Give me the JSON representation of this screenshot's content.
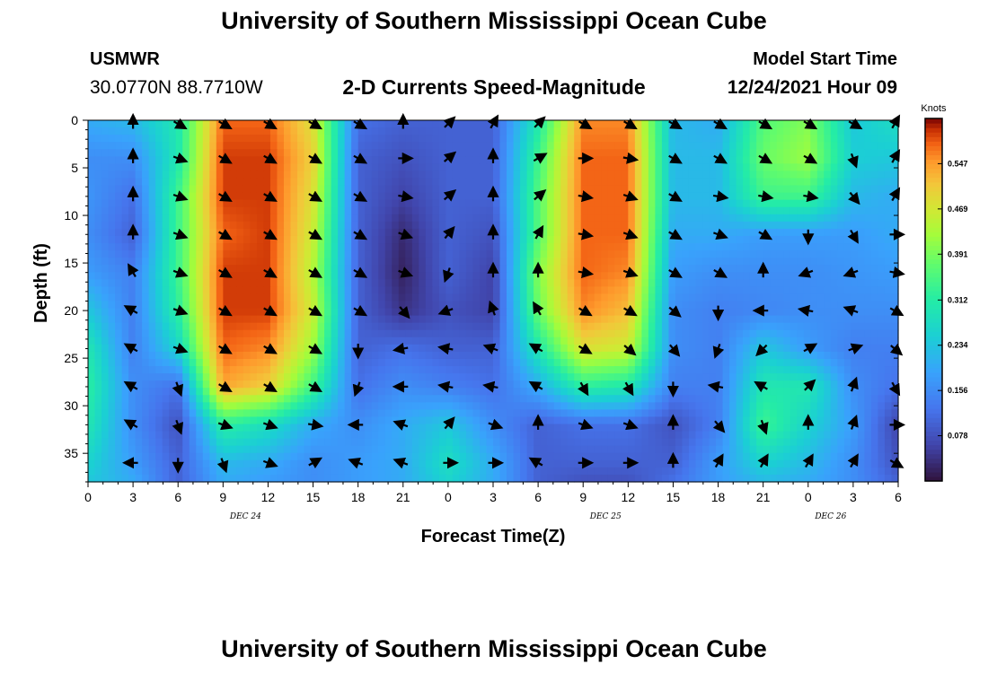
{
  "header": {
    "title": "University of Southern Mississippi Ocean Cube",
    "station_id": "USMWR",
    "station_coords": "30.0770N  88.7710W",
    "plot_title": "2-D Currents Speed-Magnitude",
    "model_label": "Model Start Time",
    "model_time": "12/24/2021 Hour 09"
  },
  "footer": {
    "title": "University of Southern Mississippi Ocean Cube"
  },
  "chart_data": {
    "type": "heatmap",
    "title": "2-D Currents Speed-Magnitude",
    "xlabel": "Forecast Time(Z)",
    "ylabel": "Depth (ft)",
    "x_range_hours": [
      0,
      54
    ],
    "ylim": [
      0,
      38
    ],
    "y_inverted": true,
    "x_tick_labels": [
      "0",
      "3",
      "6",
      "9",
      "12",
      "15",
      "18",
      "21",
      "0",
      "3",
      "6",
      "9",
      "12",
      "15",
      "18",
      "21",
      "0",
      "3",
      "6"
    ],
    "y_ticks": [
      0,
      5,
      10,
      15,
      20,
      25,
      30,
      35
    ],
    "y_tick_labels": [
      "0",
      "5",
      "10",
      "15",
      "20",
      "25",
      "30",
      "35"
    ],
    "date_labels": [
      {
        "hour": 10.5,
        "text": "DEC 24"
      },
      {
        "hour": 34.5,
        "text": "DEC 25"
      },
      {
        "hour": 49.5,
        "text": "DEC 26"
      }
    ],
    "colorbar": {
      "unit": "Knots",
      "min": 0.0,
      "max": 0.625,
      "ticks": [
        0.078,
        0.156,
        0.234,
        0.312,
        0.391,
        0.469,
        0.547
      ],
      "tick_labels": [
        "0.078",
        "0.156",
        "0.234",
        "0.312",
        "0.391",
        "0.469",
        "0.547"
      ]
    },
    "speed_depths_ft": [
      0,
      4,
      8,
      12,
      16,
      20,
      24,
      28,
      32,
      36,
      38
    ],
    "speed_hours": [
      0,
      3,
      6,
      9,
      12,
      15,
      18,
      21,
      24,
      27,
      30,
      33,
      36,
      39,
      42,
      45,
      48,
      51,
      54
    ],
    "speed_knots": [
      [
        0.2,
        0.22,
        0.3,
        0.58,
        0.58,
        0.48,
        0.12,
        0.1,
        0.1,
        0.1,
        0.3,
        0.56,
        0.56,
        0.22,
        0.2,
        0.36,
        0.4,
        0.24,
        0.28
      ],
      [
        0.16,
        0.16,
        0.3,
        0.6,
        0.6,
        0.5,
        0.1,
        0.08,
        0.1,
        0.1,
        0.34,
        0.58,
        0.58,
        0.22,
        0.22,
        0.38,
        0.42,
        0.25,
        0.24
      ],
      [
        0.17,
        0.12,
        0.34,
        0.6,
        0.6,
        0.48,
        0.1,
        0.06,
        0.1,
        0.1,
        0.36,
        0.58,
        0.58,
        0.22,
        0.22,
        0.34,
        0.34,
        0.22,
        0.2
      ],
      [
        0.16,
        0.1,
        0.34,
        0.58,
        0.6,
        0.46,
        0.1,
        0.03,
        0.1,
        0.08,
        0.36,
        0.58,
        0.58,
        0.2,
        0.2,
        0.18,
        0.18,
        0.18,
        0.2
      ],
      [
        0.18,
        0.14,
        0.34,
        0.6,
        0.6,
        0.44,
        0.1,
        0.02,
        0.1,
        0.06,
        0.4,
        0.58,
        0.56,
        0.18,
        0.16,
        0.16,
        0.16,
        0.17,
        0.18
      ],
      [
        0.24,
        0.14,
        0.32,
        0.6,
        0.6,
        0.46,
        0.1,
        0.04,
        0.08,
        0.06,
        0.38,
        0.56,
        0.52,
        0.16,
        0.14,
        0.15,
        0.16,
        0.16,
        0.16
      ],
      [
        0.3,
        0.14,
        0.26,
        0.58,
        0.56,
        0.42,
        0.1,
        0.12,
        0.1,
        0.1,
        0.3,
        0.48,
        0.46,
        0.16,
        0.14,
        0.24,
        0.18,
        0.14,
        0.14
      ],
      [
        0.32,
        0.16,
        0.12,
        0.54,
        0.5,
        0.34,
        0.12,
        0.16,
        0.14,
        0.12,
        0.2,
        0.32,
        0.3,
        0.14,
        0.14,
        0.3,
        0.3,
        0.16,
        0.12
      ],
      [
        0.3,
        0.16,
        0.08,
        0.32,
        0.28,
        0.2,
        0.16,
        0.2,
        0.24,
        0.16,
        0.1,
        0.12,
        0.12,
        0.08,
        0.14,
        0.34,
        0.26,
        0.18,
        0.06
      ],
      [
        0.26,
        0.18,
        0.1,
        0.22,
        0.2,
        0.16,
        0.18,
        0.2,
        0.28,
        0.2,
        0.1,
        0.1,
        0.1,
        0.1,
        0.18,
        0.26,
        0.22,
        0.16,
        0.08
      ],
      [
        0.24,
        0.2,
        0.1,
        0.2,
        0.18,
        0.16,
        0.18,
        0.2,
        0.26,
        0.2,
        0.1,
        0.08,
        0.08,
        0.12,
        0.18,
        0.22,
        0.2,
        0.16,
        0.1
      ]
    ],
    "vector_hours": [
      3,
      6,
      9,
      12,
      15,
      18,
      21,
      24,
      27,
      30,
      33,
      36,
      39,
      42,
      45,
      48,
      51,
      54
    ],
    "vector_depths_ft": [
      0,
      4,
      8,
      12,
      16,
      20,
      24,
      28,
      32,
      36
    ],
    "vector_directions_deg": [
      [
        0,
        120,
        120,
        120,
        120,
        120,
        0,
        45,
        30,
        45,
        120,
        120,
        120,
        120,
        120,
        120,
        120,
        30
      ],
      [
        0,
        110,
        120,
        120,
        120,
        120,
        90,
        50,
        0,
        60,
        90,
        100,
        120,
        120,
        120,
        120,
        160,
        30
      ],
      [
        0,
        110,
        120,
        120,
        120,
        120,
        100,
        50,
        0,
        50,
        100,
        110,
        120,
        100,
        100,
        100,
        140,
        30
      ],
      [
        0,
        110,
        120,
        120,
        120,
        120,
        110,
        40,
        0,
        30,
        100,
        110,
        120,
        110,
        120,
        180,
        150,
        90
      ],
      [
        330,
        110,
        120,
        120,
        120,
        120,
        110,
        200,
        0,
        0,
        100,
        110,
        120,
        120,
        0,
        250,
        250,
        100
      ],
      [
        300,
        110,
        120,
        120,
        120,
        120,
        140,
        250,
        340,
        330,
        120,
        120,
        130,
        180,
        270,
        280,
        290,
        120
      ],
      [
        300,
        110,
        120,
        120,
        120,
        180,
        260,
        280,
        290,
        300,
        120,
        130,
        140,
        200,
        225,
        60,
        70,
        130
      ],
      [
        300,
        160,
        120,
        120,
        120,
        200,
        270,
        280,
        280,
        300,
        150,
        150,
        180,
        280,
        300,
        45,
        20,
        150
      ],
      [
        300,
        160,
        110,
        110,
        100,
        270,
        290,
        40,
        110,
        0,
        110,
        110,
        0,
        140,
        160,
        0,
        20,
        90
      ],
      [
        270,
        180,
        160,
        110,
        60,
        290,
        290,
        90,
        90,
        300,
        90,
        90,
        0,
        30,
        30,
        30,
        30,
        120
      ]
    ]
  }
}
